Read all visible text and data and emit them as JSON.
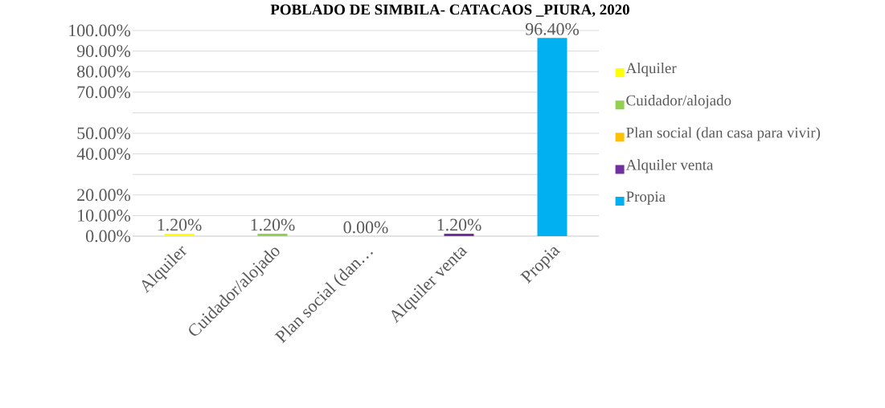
{
  "chart_data": {
    "type": "bar",
    "title": "POBLADO DE SIMBILA- CATACAOS _PIURA, 2020",
    "categories": [
      "Alquiler",
      "Cuidador/alojado",
      "Plan social (dan…",
      "Alquiler venta",
      "Propia"
    ],
    "series": [
      {
        "name": "Alquiler",
        "color": "#ffff00",
        "values": [
          1.2,
          null,
          null,
          null,
          null
        ],
        "value_labels": [
          "1.20%",
          null,
          null,
          null,
          null
        ]
      },
      {
        "name": "Cuidador/alojado",
        "color": "#92d050",
        "values": [
          null,
          1.2,
          null,
          null,
          null
        ],
        "value_labels": [
          null,
          "1.20%",
          null,
          null,
          null
        ]
      },
      {
        "name": "Plan social (dan casa para vivir)",
        "color": "#ffc000",
        "values": [
          null,
          null,
          0,
          null,
          null
        ],
        "value_labels": [
          null,
          null,
          "0.00%",
          null,
          null
        ]
      },
      {
        "name": "Alquiler venta",
        "color": "#7030a0",
        "values": [
          null,
          null,
          null,
          1.2,
          null
        ],
        "value_labels": [
          null,
          null,
          null,
          "1.20%",
          null
        ]
      },
      {
        "name": "Propia",
        "color": "#00b0f0",
        "values": [
          null,
          null,
          null,
          null,
          96.4
        ],
        "value_labels": [
          null,
          null,
          null,
          null,
          "96.40%"
        ]
      }
    ],
    "ylim": [
      0,
      100
    ],
    "yticks": [
      {
        "value": 0,
        "label": "0.00%"
      },
      {
        "value": 10,
        "label": "10.00%"
      },
      {
        "value": 20,
        "label": "20.00%"
      },
      {
        "value": 30,
        "label": null
      },
      {
        "value": 40,
        "label": "40.00%"
      },
      {
        "value": 50,
        "label": "50.00%"
      },
      {
        "value": 60,
        "label": null
      },
      {
        "value": 70,
        "label": "70.00%"
      },
      {
        "value": 80,
        "label": "80.00%"
      },
      {
        "value": 90,
        "label": "90.00%"
      },
      {
        "value": 100,
        "label": "100.00%"
      }
    ],
    "grid": "y",
    "legend": "right"
  }
}
